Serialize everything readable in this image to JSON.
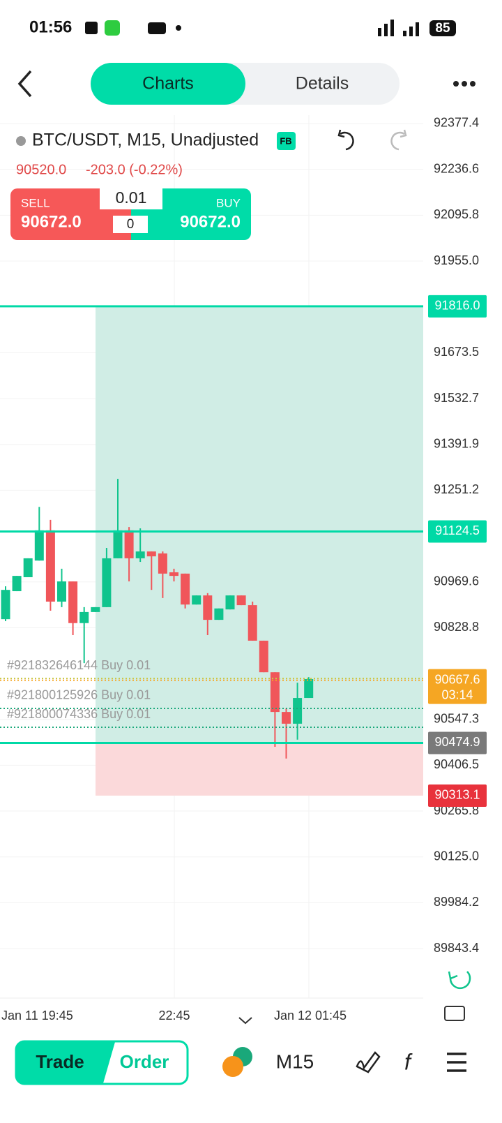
{
  "status_bar": {
    "time": "01:56",
    "battery": "85"
  },
  "header": {
    "tabs": [
      "Charts",
      "Details"
    ]
  },
  "symbol": {
    "name": "BTC/USDT, M15, Unadjusted",
    "badge": "FB",
    "price": "90520.0",
    "change": "-203.0 (-0.22%)"
  },
  "trade_panel": {
    "sell_label": "SELL",
    "sell_price": "90672.0",
    "buy_label": "BUY",
    "buy_price": "90672.0",
    "lot": "0.01",
    "spread": "0"
  },
  "chart_data": {
    "type": "candlestick",
    "ylim": [
      89691.3,
      92403.1
    ],
    "yticks": [
      92377.4,
      92236.6,
      92095.8,
      {
        "value": 91955.0,
        "label": "91955.0"
      },
      91673.5,
      91532.7,
      91391.9,
      91251.2,
      90969.6,
      90828.8,
      90547.3,
      90406.5,
      90265.8,
      {
        "value": 90125.0,
        "label": "90125.0"
      },
      89984.2,
      89843.4
    ],
    "x_labels": [
      "Jan 11 19:45",
      "22:45",
      "Jan 12 01:45"
    ],
    "up_color": "#10c48d",
    "down_color": "#f0565a",
    "open": [
      90855,
      90941,
      90984,
      91035,
      91128,
      90909,
      90971,
      90843,
      90877,
      90892,
      91042,
      91128,
      91042,
      91063,
      91057,
      90999,
      90995,
      90900,
      90928,
      90853,
      90885,
      90928,
      90898,
      90789,
      90692,
      90570,
      90534,
      90613
    ],
    "high": [
      90956,
      90988,
      91042,
      91200,
      91160,
      91010,
      90971,
      90892,
      90892,
      91074,
      91286,
      91138,
      91134,
      91063,
      91063,
      91010,
      90995,
      90928,
      90935,
      90888,
      90928,
      90928,
      90909,
      90789,
      90692,
      90581,
      90660,
      90677
    ],
    "low": [
      90849,
      90941,
      90984,
      91035,
      90881,
      90892,
      90806,
      90720,
      90877,
      90892,
      91042,
      90971,
      91031,
      90945,
      90920,
      90971,
      90888,
      90900,
      90806,
      90853,
      90885,
      90898,
      90789,
      90692,
      90463,
      90427,
      90485,
      90613
    ],
    "close": [
      90945,
      90988,
      91042,
      91128,
      90909,
      90971,
      90843,
      90877,
      90892,
      91042,
      91128,
      91042,
      91063,
      91048,
      90995,
      90988,
      90900,
      90928,
      90853,
      90888,
      90928,
      90898,
      90789,
      90692,
      90570,
      90534,
      90613,
      90671
    ],
    "levels": [
      {
        "value": 91816.0,
        "label": "91816.0",
        "color": "#00d9a6"
      },
      {
        "value": 91124.5,
        "label": "91124.5",
        "color": "#00d9a6"
      },
      {
        "value": 90667.6,
        "label": "90667.6",
        "sublabel": "03:14",
        "color": "#f5a623"
      },
      {
        "value": 90474.9,
        "label": "90474.9",
        "color": "#7a7a7a"
      },
      {
        "value": 90313.1,
        "label": "90313.1",
        "color": "#e8323c"
      }
    ],
    "orders": [
      {
        "value": 90673,
        "label": "#921832646144 Buy 0.01",
        "color": "#c9c94a"
      },
      {
        "value": 90581,
        "label": "#921800125926 Buy 0.01",
        "color": "#1aa87a"
      },
      {
        "value": 90523,
        "label": "#921800074336 Buy 0.01",
        "color": "#1aa87a"
      }
    ]
  },
  "bottom_bar": {
    "trade": "Trade",
    "order": "Order",
    "timeframe": "M15"
  }
}
